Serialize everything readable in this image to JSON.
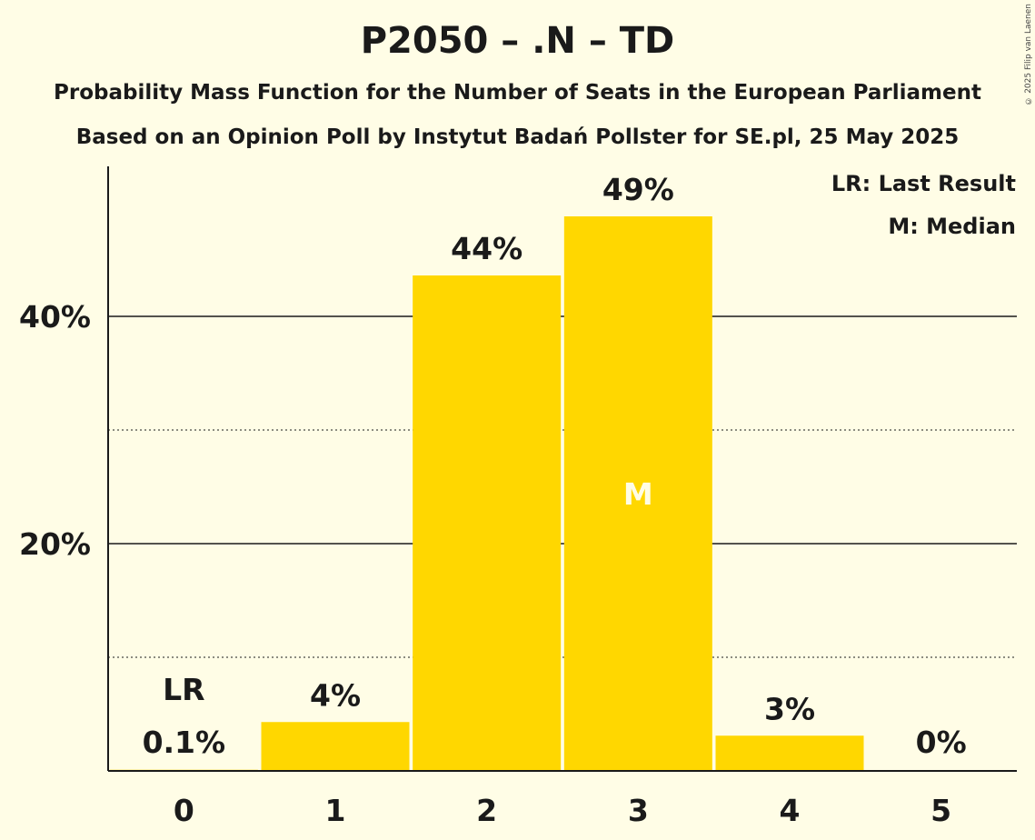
{
  "titles": {
    "main": "P2050 – .N – TD",
    "subtitle1": "Probability Mass Function for the Number of Seats in the European Parliament",
    "subtitle2": "Based on an Opinion Poll by Instytut Badań Pollster for SE.pl, 25 May 2025"
  },
  "copyright": "© 2025 Filip van Laenen",
  "legend": {
    "lr": "LR: Last Result",
    "m": "M: Median"
  },
  "colors": {
    "bar": "#FFD700",
    "background": "#FFFDE6",
    "text": "#1a1a1a",
    "median_marker": "#FFFDE6"
  },
  "chart_data": {
    "type": "bar",
    "title": "P2050 – .N – TD",
    "categories": [
      "0",
      "1",
      "2",
      "3",
      "4",
      "5"
    ],
    "values": [
      0.1,
      4.3,
      43.6,
      48.8,
      3.1,
      0
    ],
    "value_labels": [
      "0.1%",
      "4%",
      "44%",
      "49%",
      "3%",
      "0%"
    ],
    "ylim": [
      0,
      53
    ],
    "yticks": [
      {
        "value": 10,
        "label": "",
        "style": "dotted"
      },
      {
        "value": 20,
        "label": "20%",
        "style": "solid"
      },
      {
        "value": 30,
        "label": "",
        "style": "dotted"
      },
      {
        "value": 40,
        "label": "40%",
        "style": "solid"
      }
    ],
    "last_result": {
      "category": "0",
      "label": "LR"
    },
    "median": {
      "category": "3",
      "label": "M"
    },
    "legend_position": "top-right",
    "grid": true
  }
}
